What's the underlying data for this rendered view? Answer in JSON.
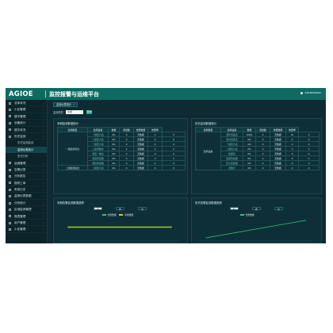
{
  "header": {
    "logo": "AGIOE",
    "title": "监控报警与运维平台",
    "user": "Administrator"
  },
  "sidebar": {
    "items": [
      {
        "label": "总体状况"
      },
      {
        "label": "小区管理"
      },
      {
        "label": "楼宇管理"
      },
      {
        "label": "设备统计"
      },
      {
        "label": "楼宇状况"
      },
      {
        "label": "历史监测"
      },
      {
        "label": "历史监测曲线",
        "sub": true
      },
      {
        "label": "监测仪表统计",
        "sub": true,
        "active": true
      },
      {
        "label": "历史分析",
        "sub": true
      },
      {
        "label": "运维管理"
      },
      {
        "label": "告警记录"
      },
      {
        "label": "分析报告"
      },
      {
        "label": "报修工单"
      },
      {
        "label": "系统日志"
      },
      {
        "label": "监测仪表数据"
      },
      {
        "label": "分析统计"
      },
      {
        "label": "区域监测管理"
      },
      {
        "label": "报表管理"
      },
      {
        "label": "用户管理"
      },
      {
        "label": "小区管理"
      }
    ]
  },
  "main": {
    "tab_label": "监测仪表统计",
    "tab_close": "×",
    "filter_label": "监测类型",
    "filter_value": "全部",
    "query_label": "查询"
  },
  "panels": {
    "left_table": {
      "title": "本期监测数据统计",
      "headers": [
        "监测类型",
        "监测设备",
        "数量",
        "离线数",
        "告警数量",
        "告警率"
      ],
      "group_label": "一级监测点位",
      "group2_label": "二级监测点位",
      "rows": [
        [
          "一级压力表",
          "0%",
          "0",
          "无数据",
          "0",
          "0"
        ],
        [
          "二级压力表",
          "0%",
          "0",
          "无数据",
          "0",
          "0"
        ],
        [
          "一级压力表",
          "0%",
          "0",
          "无数据",
          "0",
          "0"
        ],
        [
          "二级流量表",
          "0%",
          "0",
          "无数据",
          "0",
          "0"
        ],
        [
          "温压一体表",
          "0%",
          "0",
          "无数据",
          "0",
          "0"
        ],
        [
          "温度传感器",
          "0%",
          "0",
          "无数据",
          "0",
          "0"
        ],
        [
          "液位传感器",
          "0%",
          "0",
          "无数据",
          "0",
          "0"
        ],
        [
          "二级压力表",
          "0%",
          "0",
          "无数据",
          "0",
          "0"
        ]
      ]
    },
    "right_table": {
      "title": "历史监测数据统计",
      "headers": [
        "监测类型",
        "监测设备",
        "数量",
        "离线数",
        "告警数量",
        "告警率"
      ],
      "group_label": "监测设备",
      "rows": [
        [
          "室外温度表",
          "100%",
          "0",
          "无数据",
          "10",
          "0"
        ],
        [
          "室内温度表",
          "0%",
          "0",
          "无数据",
          "0",
          "0"
        ],
        [
          "一级压力表",
          "0%",
          "0",
          "无数据",
          "0",
          "0"
        ],
        [
          "二级压力表",
          "0%",
          "0",
          "无数据",
          "0",
          "0"
        ],
        [
          "热量表",
          "0%",
          "0",
          "无数据",
          "0",
          "0"
        ],
        [
          "温度传感器",
          "0%",
          "0",
          "无数据",
          "0",
          "0"
        ],
        [
          "压力变送器",
          "0%",
          "0",
          "无数据",
          "0",
          "0"
        ],
        [
          "流量计",
          "0%",
          "0",
          "无数据",
          "0",
          "0"
        ]
      ]
    },
    "left_chart": {
      "title": "本期告警监测数据趋势",
      "pills": [
        "日",
        "周",
        "月"
      ],
      "legend": [
        "告警数量",
        "离线数量"
      ]
    },
    "right_chart": {
      "title": "历史告警监测数据趋势",
      "pills": [
        "日",
        "周",
        "月"
      ],
      "legend": [
        "告警数量",
        "离线数量"
      ]
    }
  },
  "colors": {
    "topbar": "#0d6b61",
    "background": "#0e2a33",
    "accent": "#16a085",
    "series_alarm": "#2ecc71",
    "series_offline": "#f1c40f"
  },
  "chart_data": [
    {
      "type": "line",
      "series": [
        {
          "name": "告警数量",
          "values": [
            1,
            1
          ]
        },
        {
          "name": "离线数量",
          "values": [
            1,
            1
          ]
        }
      ]
    },
    {
      "type": "line",
      "series": [
        {
          "name": "告警数量",
          "values": [
            0,
            1
          ]
        }
      ]
    }
  ]
}
